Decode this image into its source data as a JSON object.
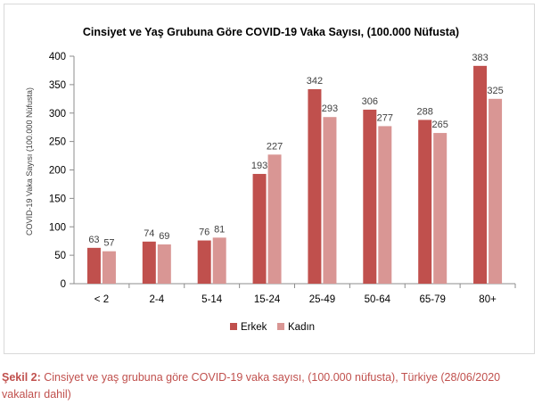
{
  "chart_data": {
    "type": "bar",
    "title": "Cinsiyet ve Yaş Grubuna Göre COVID-19 Vaka Sayısı, (100.000 Nüfusta)",
    "xlabel": "",
    "ylabel": "COVID-19 Vaka Sayısı (100.000 Nüfusta)",
    "categories": [
      "< 2",
      "2-4",
      "5-14",
      "15-24",
      "25-49",
      "50-64",
      "65-79",
      "80+"
    ],
    "series": [
      {
        "name": "Erkek",
        "color": "#c0504d",
        "values": [
          63,
          74,
          76,
          193,
          342,
          306,
          288,
          383
        ]
      },
      {
        "name": "Kadın",
        "color": "#d99694",
        "values": [
          57,
          69,
          81,
          227,
          293,
          277,
          265,
          325
        ]
      }
    ],
    "ylim": [
      0,
      400
    ],
    "yticks": [
      "0",
      "50",
      "100",
      "150",
      "200",
      "250",
      "300",
      "350",
      "400"
    ],
    "grid": false,
    "legend_position": "bottom"
  },
  "caption": {
    "label": "Şekil 2:",
    "text": " Cinsiyet ve yaş grubuna göre COVID-19 vaka sayısı, (100.000 nüfusta), Türkiye (28/06/2020 vakaları dahil)"
  }
}
